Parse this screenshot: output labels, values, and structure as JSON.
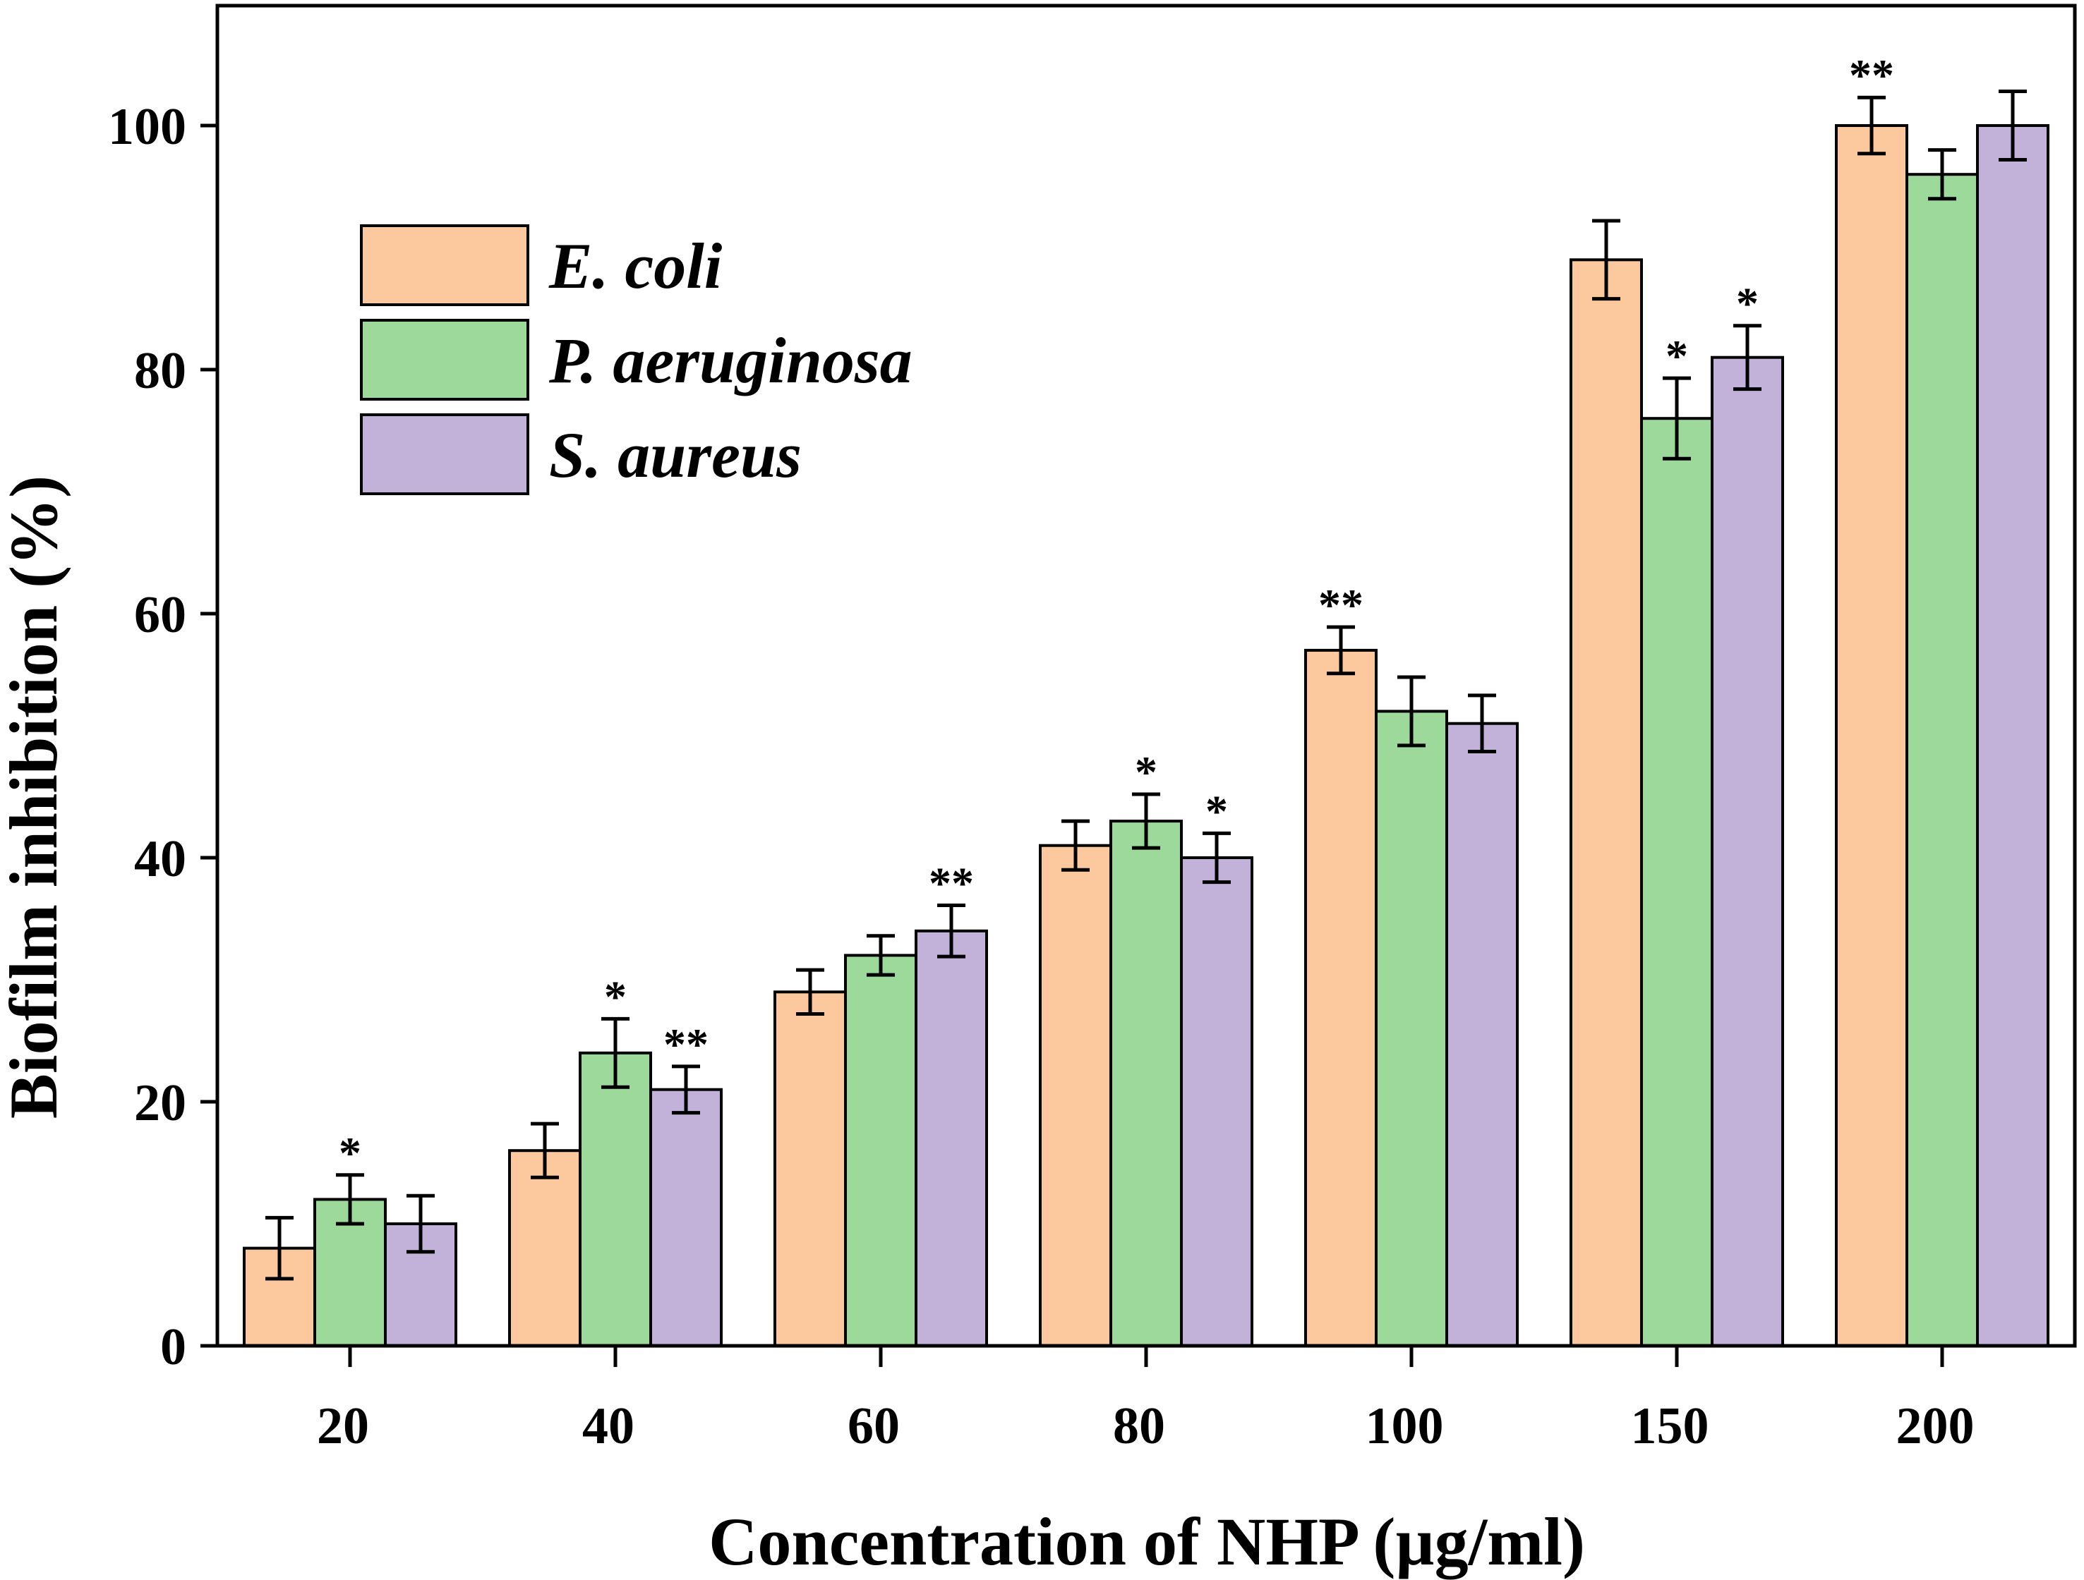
{
  "chart_data": {
    "type": "bar",
    "xlabel": "Concentration of NHP (µg/ml)",
    "ylabel": "Biofilm inhibition (%)",
    "ylim": [
      0,
      110
    ],
    "yticks": [
      0,
      20,
      40,
      60,
      80,
      100
    ],
    "categories": [
      "20",
      "40",
      "60",
      "80",
      "100",
      "150",
      "200"
    ],
    "legend_position": "top-left",
    "series": [
      {
        "name": "E. coli",
        "color": "#FCC89D",
        "values": [
          8,
          16,
          29,
          41,
          57,
          89,
          100
        ],
        "errors": [
          2.5,
          2.2,
          1.8,
          2.0,
          1.9,
          3.2,
          2.3
        ],
        "significance": [
          "",
          "",
          "",
          "",
          "**",
          "",
          "**"
        ]
      },
      {
        "name": "P. aeruginosa",
        "color": "#9ED99C",
        "values": [
          12,
          24,
          32,
          43,
          52,
          76,
          96
        ],
        "errors": [
          2.0,
          2.8,
          1.6,
          2.2,
          2.8,
          3.3,
          2.0
        ],
        "significance": [
          "*",
          "*",
          "",
          "*",
          "",
          "*",
          ""
        ]
      },
      {
        "name": "S. aureus",
        "color": "#C2B1D9",
        "values": [
          10,
          21,
          34,
          40,
          51,
          81,
          100
        ],
        "errors": [
          2.3,
          1.9,
          2.1,
          2.0,
          2.3,
          2.6,
          2.8
        ],
        "significance": [
          "",
          "**",
          "**",
          "*",
          "",
          "*",
          ""
        ]
      }
    ]
  }
}
